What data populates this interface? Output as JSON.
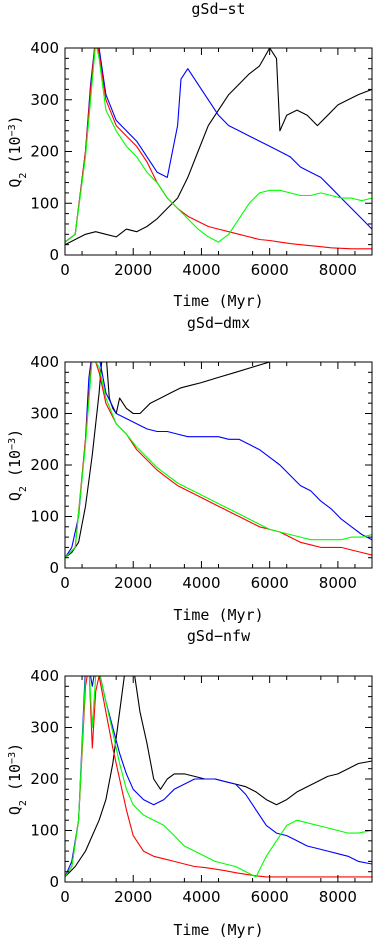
{
  "chart_data": [
    {
      "type": "line",
      "title": "gSd−st",
      "xlabel": "Time (Myr)",
      "ylabel": "Q",
      "ylabel_sub": "2",
      "ylabel_unit": "(10",
      "ylabel_exp": "−3",
      "ylabel_close": ")",
      "xlim": [
        0,
        9000
      ],
      "ylim": [
        0,
        400
      ],
      "xticks": [
        0,
        2000,
        4000,
        6000,
        8000
      ],
      "yticks": [
        0,
        100,
        200,
        300,
        400
      ],
      "series": [
        {
          "color": "#000000",
          "x": [
            0,
            300,
            600,
            900,
            1200,
            1500,
            1800,
            2100,
            2400,
            2700,
            3000,
            3300,
            3600,
            3900,
            4200,
            4500,
            4800,
            5100,
            5400,
            5700,
            6000,
            6200,
            6300,
            6500,
            6800,
            7100,
            7400,
            7700,
            8000,
            8300,
            8600,
            9000
          ],
          "y": [
            20,
            30,
            40,
            45,
            40,
            35,
            50,
            45,
            55,
            70,
            90,
            110,
            150,
            200,
            250,
            280,
            310,
            330,
            350,
            365,
            400,
            380,
            240,
            270,
            280,
            270,
            250,
            270,
            290,
            300,
            310,
            320
          ]
        },
        {
          "color": "#0000ff",
          "x": [
            0,
            300,
            600,
            750,
            900,
            1000,
            1200,
            1500,
            1800,
            2100,
            2400,
            2700,
            3000,
            3300,
            3400,
            3600,
            3900,
            4200,
            4500,
            4800,
            5100,
            5400,
            5700,
            6000,
            6300,
            6600,
            6900,
            7200,
            7500,
            7800,
            8100,
            8400,
            8700,
            9000
          ],
          "y": [
            25,
            40,
            200,
            330,
            420,
            400,
            310,
            260,
            240,
            220,
            190,
            160,
            150,
            250,
            340,
            360,
            330,
            300,
            270,
            250,
            240,
            230,
            220,
            210,
            200,
            190,
            170,
            160,
            150,
            130,
            110,
            90,
            70,
            50
          ]
        },
        {
          "color": "#ff0000",
          "x": [
            0,
            300,
            600,
            750,
            900,
            1000,
            1200,
            1500,
            1800,
            2100,
            2400,
            2700,
            3000,
            3300,
            3600,
            3900,
            4200,
            4500,
            4800,
            5100,
            5400,
            5700,
            6000,
            6300,
            6600,
            6900,
            7200,
            7500,
            7800,
            8100,
            8400,
            8700,
            9000
          ],
          "y": [
            25,
            40,
            200,
            320,
            420,
            390,
            300,
            250,
            230,
            210,
            180,
            140,
            110,
            90,
            75,
            65,
            55,
            50,
            45,
            40,
            35,
            30,
            28,
            25,
            22,
            20,
            18,
            16,
            14,
            13,
            12,
            12,
            12
          ]
        },
        {
          "color": "#00ff00",
          "x": [
            0,
            300,
            600,
            750,
            900,
            1000,
            1200,
            1500,
            1800,
            2100,
            2400,
            2700,
            3000,
            3300,
            3600,
            3900,
            4200,
            4500,
            4800,
            5100,
            5400,
            5700,
            6000,
            6300,
            6600,
            6900,
            7200,
            7500,
            7800,
            8100,
            8400,
            8700,
            9000
          ],
          "y": [
            25,
            40,
            190,
            300,
            410,
            380,
            280,
            240,
            210,
            190,
            160,
            140,
            110,
            90,
            70,
            50,
            35,
            25,
            40,
            70,
            100,
            120,
            125,
            125,
            120,
            115,
            115,
            120,
            115,
            110,
            110,
            105,
            110
          ]
        }
      ]
    },
    {
      "type": "line",
      "title": "gSd−dmx",
      "xlabel": "Time (Myr)",
      "ylabel": "Q",
      "ylabel_sub": "2",
      "ylabel_unit": "(10",
      "ylabel_exp": "−3",
      "ylabel_close": ")",
      "xlim": [
        0,
        9000
      ],
      "ylim": [
        0,
        400
      ],
      "xticks": [
        0,
        2000,
        4000,
        6000,
        8000
      ],
      "yticks": [
        0,
        100,
        200,
        300,
        400
      ],
      "series": [
        {
          "color": "#000000",
          "x": [
            0,
            200,
            400,
            600,
            800,
            1000,
            1100,
            1200,
            1300,
            1400,
            1500,
            1600,
            1800,
            2000,
            2200,
            2500,
            2800,
            3100,
            3400,
            3700,
            4000,
            4500,
            5000,
            5500,
            6000,
            6500,
            7000,
            7500,
            8000,
            8300,
            8600,
            9000
          ],
          "y": [
            20,
            30,
            50,
            120,
            220,
            340,
            420,
            420,
            330,
            310,
            300,
            330,
            310,
            300,
            300,
            320,
            330,
            340,
            350,
            355,
            360,
            370,
            380,
            390,
            400,
            405,
            410,
            420,
            420,
            420,
            420,
            420
          ]
        },
        {
          "color": "#0000ff",
          "x": [
            0,
            200,
            400,
            600,
            700,
            800,
            900,
            1000,
            1200,
            1500,
            1800,
            2100,
            2400,
            2700,
            3000,
            3300,
            3600,
            3900,
            4200,
            4500,
            4800,
            5100,
            5400,
            5700,
            6000,
            6300,
            6600,
            6900,
            7200,
            7500,
            7800,
            8100,
            8400,
            8700,
            9000
          ],
          "y": [
            20,
            40,
            100,
            250,
            370,
            420,
            420,
            410,
            340,
            300,
            290,
            280,
            270,
            265,
            265,
            260,
            255,
            255,
            255,
            255,
            250,
            250,
            240,
            230,
            215,
            200,
            180,
            160,
            150,
            130,
            115,
            95,
            80,
            65,
            55
          ]
        },
        {
          "color": "#ff0000",
          "x": [
            0,
            300,
            600,
            800,
            1000,
            1200,
            1500,
            1800,
            2100,
            2400,
            2700,
            3000,
            3300,
            3600,
            3900,
            4200,
            4500,
            4800,
            5100,
            5400,
            5700,
            6000,
            6300,
            6600,
            6900,
            7200,
            7500,
            7800,
            8100,
            8400,
            8700,
            9000
          ],
          "y": [
            20,
            40,
            250,
            420,
            380,
            320,
            280,
            260,
            230,
            210,
            190,
            175,
            160,
            150,
            140,
            130,
            120,
            110,
            100,
            90,
            80,
            75,
            70,
            60,
            50,
            45,
            40,
            40,
            40,
            35,
            30,
            25
          ]
        },
        {
          "color": "#00ff00",
          "x": [
            0,
            300,
            600,
            800,
            1000,
            1200,
            1500,
            1800,
            2100,
            2400,
            2700,
            3000,
            3300,
            3600,
            3900,
            4200,
            4500,
            4800,
            5100,
            5400,
            5700,
            6000,
            6300,
            6600,
            6900,
            7200,
            7500,
            7800,
            8100,
            8400,
            8700,
            9000
          ],
          "y": [
            20,
            40,
            240,
            410,
            390,
            330,
            280,
            260,
            235,
            215,
            195,
            180,
            165,
            155,
            145,
            135,
            125,
            115,
            105,
            95,
            85,
            75,
            70,
            65,
            60,
            55,
            55,
            55,
            55,
            60,
            60,
            65
          ]
        }
      ]
    },
    {
      "type": "line",
      "title": "gSd−nfw",
      "xlabel": "Time (Myr)",
      "ylabel": "Q",
      "ylabel_sub": "2",
      "ylabel_unit": "(10",
      "ylabel_exp": "−3",
      "ylabel_close": ")",
      "xlim": [
        0,
        9000
      ],
      "ylim": [
        0,
        400
      ],
      "xticks": [
        0,
        2000,
        4000,
        6000,
        8000
      ],
      "yticks": [
        0,
        100,
        200,
        300,
        400
      ],
      "series": [
        {
          "color": "#000000",
          "x": [
            0,
            300,
            600,
            800,
            1000,
            1200,
            1400,
            1600,
            1800,
            2000,
            2200,
            2400,
            2600,
            2800,
            3000,
            3200,
            3500,
            3800,
            4100,
            4400,
            4700,
            5000,
            5300,
            5600,
            5900,
            6200,
            6500,
            6800,
            7100,
            7400,
            7700,
            8000,
            8300,
            8600,
            9000
          ],
          "y": [
            10,
            30,
            60,
            90,
            120,
            160,
            230,
            330,
            430,
            420,
            330,
            270,
            200,
            180,
            200,
            210,
            210,
            205,
            200,
            200,
            195,
            190,
            185,
            175,
            160,
            150,
            160,
            175,
            185,
            195,
            205,
            210,
            220,
            230,
            235
          ]
        },
        {
          "color": "#0000ff",
          "x": [
            0,
            200,
            400,
            600,
            700,
            800,
            900,
            1000,
            1200,
            1400,
            1600,
            1800,
            2000,
            2300,
            2600,
            2900,
            3200,
            3500,
            3800,
            4100,
            4400,
            4700,
            5000,
            5300,
            5600,
            5900,
            6200,
            6500,
            6800,
            7100,
            7400,
            7700,
            8000,
            8300,
            8600,
            9000
          ],
          "y": [
            10,
            40,
            120,
            420,
            420,
            380,
            420,
            410,
            350,
            300,
            250,
            210,
            180,
            160,
            150,
            160,
            180,
            190,
            200,
            200,
            200,
            195,
            190,
            170,
            140,
            110,
            95,
            90,
            80,
            70,
            65,
            60,
            55,
            50,
            40,
            35
          ]
        },
        {
          "color": "#ff0000",
          "x": [
            0,
            200,
            400,
            600,
            700,
            800,
            900,
            1000,
            1200,
            1400,
            1600,
            1800,
            2000,
            2300,
            2600,
            2900,
            3200,
            3500,
            3800,
            4100,
            4400,
            4700,
            5000,
            5300,
            5600,
            5900,
            6200,
            6500,
            6800,
            7100,
            7400,
            7700,
            8000,
            8300,
            8600,
            9000
          ],
          "y": [
            10,
            30,
            120,
            380,
            420,
            260,
            370,
            400,
            330,
            260,
            200,
            140,
            90,
            60,
            50,
            45,
            40,
            35,
            30,
            28,
            25,
            22,
            18,
            15,
            12,
            10,
            10,
            10,
            10,
            10,
            10,
            10,
            10,
            10,
            10,
            10
          ]
        },
        {
          "color": "#00ff00",
          "x": [
            0,
            200,
            400,
            600,
            700,
            800,
            900,
            1000,
            1200,
            1400,
            1600,
            1800,
            2000,
            2300,
            2600,
            2900,
            3200,
            3500,
            3800,
            4100,
            4400,
            4700,
            5000,
            5300,
            5600,
            5900,
            6200,
            6500,
            6800,
            7100,
            7400,
            7700,
            8000,
            8300,
            8600,
            9000
          ],
          "y": [
            10,
            30,
            120,
            400,
            420,
            300,
            400,
            410,
            350,
            290,
            230,
            180,
            150,
            130,
            120,
            110,
            90,
            70,
            60,
            50,
            40,
            35,
            30,
            20,
            10,
            50,
            80,
            110,
            120,
            115,
            110,
            105,
            100,
            95,
            95,
            100
          ]
        }
      ]
    }
  ]
}
